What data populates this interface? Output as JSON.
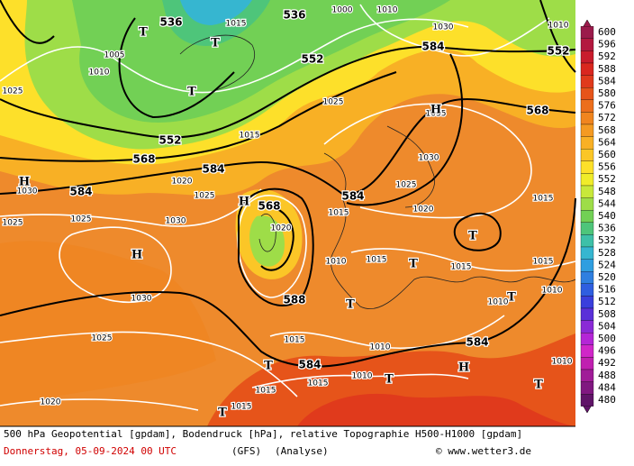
{
  "map": {
    "contour_labels": [
      "536",
      "536",
      "1000",
      "1015",
      "1010",
      "1030",
      "1010",
      "584",
      "552",
      "552",
      "1005",
      "1010",
      "1025",
      "1025",
      "1035",
      "568",
      "552",
      "1015",
      "568",
      "584",
      "1020",
      "584",
      "1030",
      "1030",
      "1025",
      "1025",
      "568",
      "584",
      "1015",
      "1020",
      "1025",
      "1025",
      "1030",
      "1020",
      "588",
      "1030",
      "1025",
      "1010",
      "1015",
      "1015",
      "1010",
      "1010",
      "584",
      "584",
      "1015",
      "1010",
      "1010",
      "1015",
      "1015",
      "1015",
      "1020",
      "1010",
      "1015",
      "1015"
    ],
    "pressure_centers": [
      "H",
      "H",
      "H",
      "H",
      "H",
      "T",
      "T",
      "T",
      "T",
      "T",
      "T",
      "T",
      "T",
      "T",
      "T",
      "T"
    ]
  },
  "colorbar": {
    "labels": [
      600,
      596,
      592,
      588,
      584,
      580,
      576,
      572,
      568,
      564,
      560,
      556,
      552,
      548,
      544,
      540,
      536,
      532,
      528,
      524,
      520,
      516,
      512,
      508,
      504,
      500,
      496,
      492,
      488,
      484,
      480
    ],
    "colors": [
      "#9b1b4b",
      "#b3193f",
      "#c81c2c",
      "#d9271f",
      "#e03a1c",
      "#e6541a",
      "#ec6e1c",
      "#f0851f",
      "#f49a22",
      "#f8b025",
      "#fbc627",
      "#fde02a",
      "#f0ec2a",
      "#c8e83a",
      "#9edd48",
      "#72d055",
      "#4ec57a",
      "#3ec0a8",
      "#36b6d0",
      "#2f9ee0",
      "#2f7fe0",
      "#2f5ee0",
      "#3a3fdc",
      "#5a30d8",
      "#8a2ad6",
      "#b426d6",
      "#d026c8",
      "#c020b0",
      "#a01c98",
      "#801880",
      "#601468"
    ]
  },
  "footer": {
    "description": "500 hPa Geopotential [gpdam], Bodendruck [hPa], relative Topographie H500-H1000 [gpdam]",
    "date": "Donnerstag, 05-09-2024  00 UTC",
    "model": "(GFS)",
    "run": "(Analyse)",
    "credit": "© www.wetter3.de"
  }
}
